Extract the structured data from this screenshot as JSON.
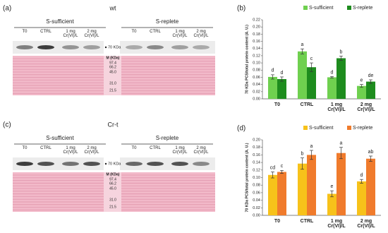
{
  "blots": [
    {
      "panel_label": "(a)",
      "strain": "wt",
      "groups": [
        "S-sufficient",
        "S-replete"
      ],
      "lanes": [
        "T0",
        "CTRL",
        "1 mg Cr(VI)/L",
        "2 mg Cr(VI)/L"
      ],
      "band_label": "70 KDa",
      "marker_title": "M (KDa)",
      "markers": [
        "97.4",
        "66.2",
        "45.0",
        "31.0",
        "21.5"
      ]
    },
    {
      "panel_label": "(c)",
      "strain": "Cr-t",
      "groups": [
        "S-sufficient",
        "S-replete"
      ],
      "lanes": [
        "T0",
        "CTRL",
        "1 mg Cr(VI)/L",
        "2 mg Cr(VI)/L"
      ],
      "band_label": "70 KDa",
      "marker_title": "M (KDa)",
      "markers": [
        "97.4",
        "66.2",
        "45.0",
        "31.0",
        "21.5"
      ]
    }
  ],
  "chart_data": [
    {
      "type": "bar",
      "panel_label": "(b)",
      "y_label": "70 KDa PCS/total protein content (A. U.)",
      "categories": [
        "T0",
        "CTRL",
        "1 mg Cr(VI)/L",
        "2 mg Cr(VI)/L"
      ],
      "series": [
        {
          "name": "S-sufficient",
          "color": "#6fd04f",
          "values": [
            0.061,
            0.132,
            0.06,
            0.036
          ],
          "errors": [
            0.006,
            0.007,
            0.002,
            0.004
          ],
          "letters": [
            "d",
            "a",
            "d",
            "e"
          ]
        },
        {
          "name": "S-replete",
          "color": "#1e8c1e",
          "values": [
            0.055,
            0.088,
            0.113,
            0.048
          ],
          "errors": [
            0.006,
            0.012,
            0.006,
            0.005
          ],
          "letters": [
            "d",
            "c",
            "b",
            "de"
          ]
        }
      ],
      "ylim": [
        0,
        0.22
      ],
      "yticks": [
        {
          "value": 0,
          "label": "0.00"
        },
        {
          "value": 0.02,
          "label": "0.02"
        },
        {
          "value": 0.04,
          "label": "0.04"
        },
        {
          "value": 0.06,
          "label": "0.06"
        },
        {
          "value": 0.08,
          "label": "0.08"
        },
        {
          "value": 0.1,
          "label": "0.10"
        },
        {
          "value": 0.12,
          "label": "0.12"
        },
        {
          "value": 0.14,
          "label": "0.14"
        },
        {
          "value": 0.16,
          "label": "0.16"
        },
        {
          "value": 0.18,
          "label": "0.18"
        },
        {
          "value": 0.2,
          "label": "0.20"
        },
        {
          "value": 0.22,
          "label": "0.22"
        }
      ],
      "legend": "top-right"
    },
    {
      "type": "bar",
      "panel_label": "(d)",
      "y_label": "70 KDa PCS/total protein content (A. U.)",
      "categories": [
        "T0",
        "CTRL",
        "1 mg Cr(VI)/L",
        "2 mg Cr(VI)/L"
      ],
      "series": [
        {
          "name": "S-sufficient",
          "color": "#f7c21a",
          "values": [
            0.107,
            0.137,
            0.057,
            0.09
          ],
          "errors": [
            0.008,
            0.015,
            0.008,
            0.005
          ],
          "letters": [
            "cd",
            "b",
            "e",
            "d"
          ]
        },
        {
          "name": "S-replete",
          "color": "#f07b2c",
          "values": [
            0.115,
            0.16,
            0.165,
            0.15
          ],
          "errors": [
            0.004,
            0.012,
            0.015,
            0.007
          ],
          "letters": [
            "c",
            "a",
            "a",
            "ab"
          ]
        }
      ],
      "ylim": [
        0,
        0.2
      ],
      "yticks": [
        {
          "value": 0,
          "label": "0.00"
        },
        {
          "value": 0.02,
          "label": "0.02"
        },
        {
          "value": 0.04,
          "label": "0.04"
        },
        {
          "value": 0.06,
          "label": "0.06"
        },
        {
          "value": 0.08,
          "label": "0.08"
        },
        {
          "value": 0.1,
          "label": "0.10"
        },
        {
          "value": 0.12,
          "label": "0.12"
        },
        {
          "value": 0.14,
          "label": "0.14"
        },
        {
          "value": 0.16,
          "label": "0.16"
        },
        {
          "value": 0.18,
          "label": "0.18"
        },
        {
          "value": 0.2,
          "label": "0.20"
        }
      ],
      "legend": "top-right"
    }
  ]
}
